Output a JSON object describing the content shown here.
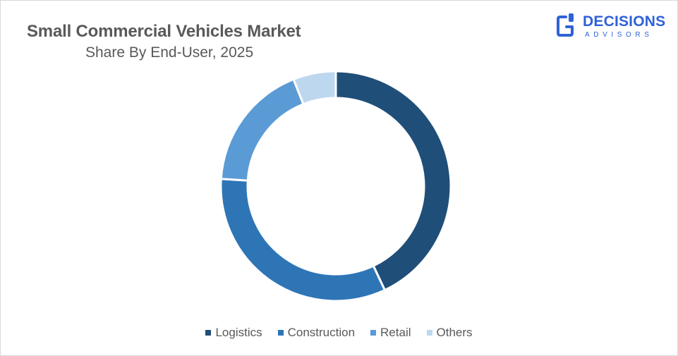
{
  "header": {
    "title": "Small Commercial Vehicles Market",
    "subtitle": "Share By End-User, 2025"
  },
  "logo": {
    "name": "DECISIONS",
    "tagline": "ADVISORS",
    "icon": "decisions-advisors-logo-icon",
    "color": "#2f62d6"
  },
  "chart_data": {
    "type": "pie",
    "style": "donut",
    "title": "Small Commercial Vehicles Market",
    "subtitle": "Share By End-User, 2025",
    "legend_position": "bottom",
    "categories": [
      "Logistics",
      "Construction",
      "Retail",
      "Others"
    ],
    "values": [
      43,
      33,
      18,
      6
    ],
    "colors": [
      "#1f4e79",
      "#2e75b6",
      "#5b9bd5",
      "#bdd7ee"
    ]
  }
}
